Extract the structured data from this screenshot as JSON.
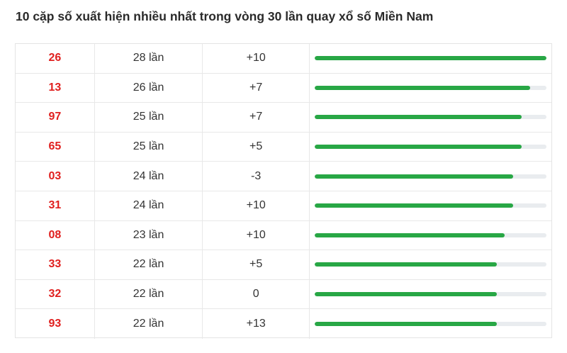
{
  "title": "10 cặp số xuất hiện nhiều nhất trong vòng 30 lần quay xổ số Miền Nam",
  "colors": {
    "number": "#e0201f",
    "bar_fill": "#28a745",
    "bar_track": "#e9ecef"
  },
  "rows": [
    {
      "number": "26",
      "times": "28 lần",
      "change": "+10",
      "progress": 1.0
    },
    {
      "number": "13",
      "times": "26 lần",
      "change": "+7",
      "progress": 0.929
    },
    {
      "number": "97",
      "times": "25 lần",
      "change": "+7",
      "progress": 0.893
    },
    {
      "number": "65",
      "times": "25 lần",
      "change": "+5",
      "progress": 0.893
    },
    {
      "number": "03",
      "times": "24 lần",
      "change": "-3",
      "progress": 0.857
    },
    {
      "number": "31",
      "times": "24 lần",
      "change": "+10",
      "progress": 0.857
    },
    {
      "number": "08",
      "times": "23 lần",
      "change": "+10",
      "progress": 0.821
    },
    {
      "number": "33",
      "times": "22 lần",
      "change": "+5",
      "progress": 0.786
    },
    {
      "number": "32",
      "times": "22 lần",
      "change": "0",
      "progress": 0.786
    },
    {
      "number": "93",
      "times": "22 lần",
      "change": "+13",
      "progress": 0.786
    }
  ]
}
